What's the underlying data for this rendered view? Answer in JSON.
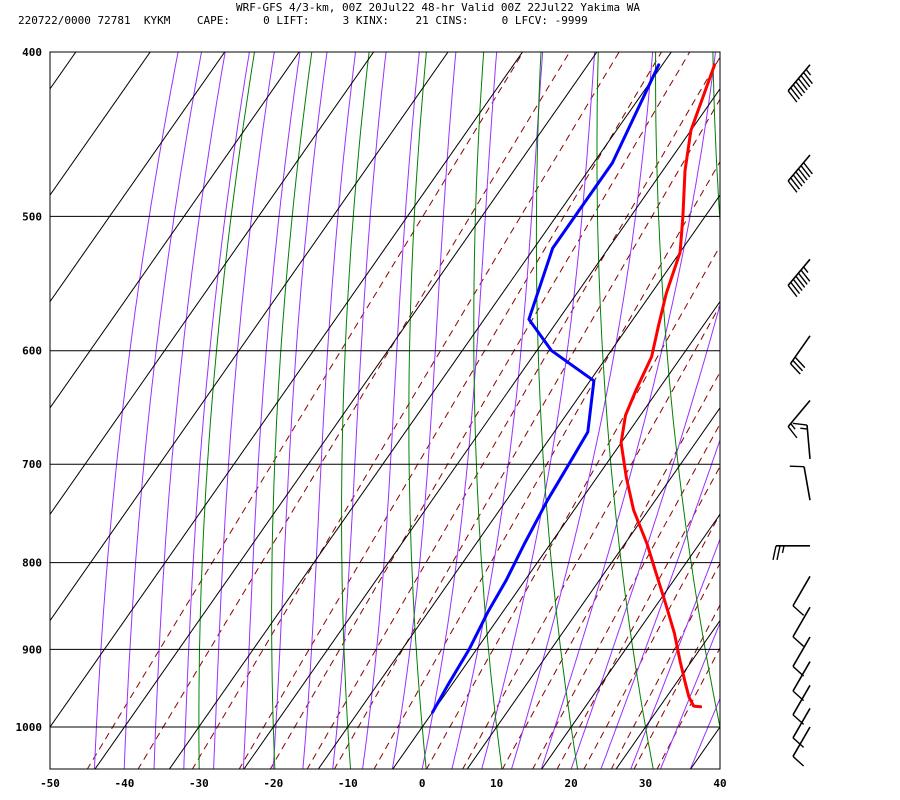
{
  "title": "WRF-GFS 4/3-km, 00Z 20Jul22 48-hr Valid 00Z 22Jul22 Yakima WA",
  "info": {
    "station_line": "220722/0000 72781  KYKM",
    "indices": [
      {
        "label": "CAPE:",
        "value": "0"
      },
      {
        "label": "LIFT:",
        "value": "3"
      },
      {
        "label": "KINX:",
        "value": "21"
      },
      {
        "label": "CINS:",
        "value": "0"
      },
      {
        "label": "LFCV:",
        "value": "-9999"
      }
    ]
  },
  "colors": {
    "temperature": "#ff0000",
    "dewpoint": "#0000ff",
    "isotherm_grid": "#000000",
    "dry_adiabat": "#008000",
    "moist_adiabat": "#9b30ff",
    "mixing_ratio": "#8b0000"
  },
  "chart_data": {
    "type": "line",
    "title": "WRF-GFS 4/3-km, 00Z 20Jul22 48-hr Valid 00Z 22Jul22 Yakima WA",
    "xlabel": "",
    "ylabel": "",
    "x_ticks": [
      -50,
      -40,
      -30,
      -20,
      -10,
      0,
      10,
      20,
      30,
      40
    ],
    "xlim": [
      -50,
      40
    ],
    "y_ticks": [
      400,
      500,
      600,
      700,
      800,
      900,
      1000
    ],
    "ylim": [
      1050,
      400
    ],
    "y_scale": "log",
    "series": [
      {
        "key": "temperature",
        "points": [
          [
            35.5,
            973
          ],
          [
            34.5,
            972
          ],
          [
            33,
            960
          ],
          [
            31,
            940
          ],
          [
            28.5,
            915
          ],
          [
            25,
            880
          ],
          [
            21,
            845
          ],
          [
            17,
            812
          ],
          [
            13,
            780
          ],
          [
            8,
            745
          ],
          [
            4,
            713
          ],
          [
            0,
            680
          ],
          [
            -2,
            655
          ],
          [
            -3,
            632
          ],
          [
            -4,
            605
          ],
          [
            -6,
            580
          ],
          [
            -8,
            555
          ],
          [
            -10,
            525
          ],
          [
            -13,
            500
          ],
          [
            -17,
            470
          ],
          [
            -20,
            445
          ],
          [
            -23,
            407
          ]
        ]
      },
      {
        "key": "dewpoint",
        "points": [
          [
            0,
            980
          ],
          [
            -0.5,
            945
          ],
          [
            -1,
            900
          ],
          [
            -2,
            855
          ],
          [
            -2.5,
            820
          ],
          [
            -3.5,
            780
          ],
          [
            -4.5,
            735
          ],
          [
            -5,
            700
          ],
          [
            -5.5,
            670
          ],
          [
            -9.5,
            625
          ],
          [
            -18,
            600
          ],
          [
            -24,
            575
          ],
          [
            -27.5,
            522
          ],
          [
            -27.5,
            498
          ],
          [
            -27.5,
            465
          ],
          [
            -30.5,
            407
          ]
        ]
      }
    ],
    "wind_barbs": [
      {
        "p": 407,
        "dir": 220,
        "kt": 75
      },
      {
        "p": 460,
        "dir": 220,
        "kt": 70
      },
      {
        "p": 530,
        "dir": 220,
        "kt": 65
      },
      {
        "p": 588,
        "dir": 215,
        "kt": 30
      },
      {
        "p": 642,
        "dir": 220,
        "kt": 15
      },
      {
        "p": 695,
        "dir": 355,
        "kt": 15
      },
      {
        "p": 735,
        "dir": 350,
        "kt": 10
      },
      {
        "p": 782,
        "dir": 270,
        "kt": 25
      },
      {
        "p": 815,
        "dir": 210,
        "kt": 10
      },
      {
        "p": 850,
        "dir": 210,
        "kt": 10
      },
      {
        "p": 885,
        "dir": 210,
        "kt": 10
      },
      {
        "p": 915,
        "dir": 210,
        "kt": 10
      },
      {
        "p": 945,
        "dir": 210,
        "kt": 10
      },
      {
        "p": 975,
        "dir": 210,
        "kt": 10
      },
      {
        "p": 1000,
        "dir": 210,
        "kt": 10
      }
    ]
  }
}
